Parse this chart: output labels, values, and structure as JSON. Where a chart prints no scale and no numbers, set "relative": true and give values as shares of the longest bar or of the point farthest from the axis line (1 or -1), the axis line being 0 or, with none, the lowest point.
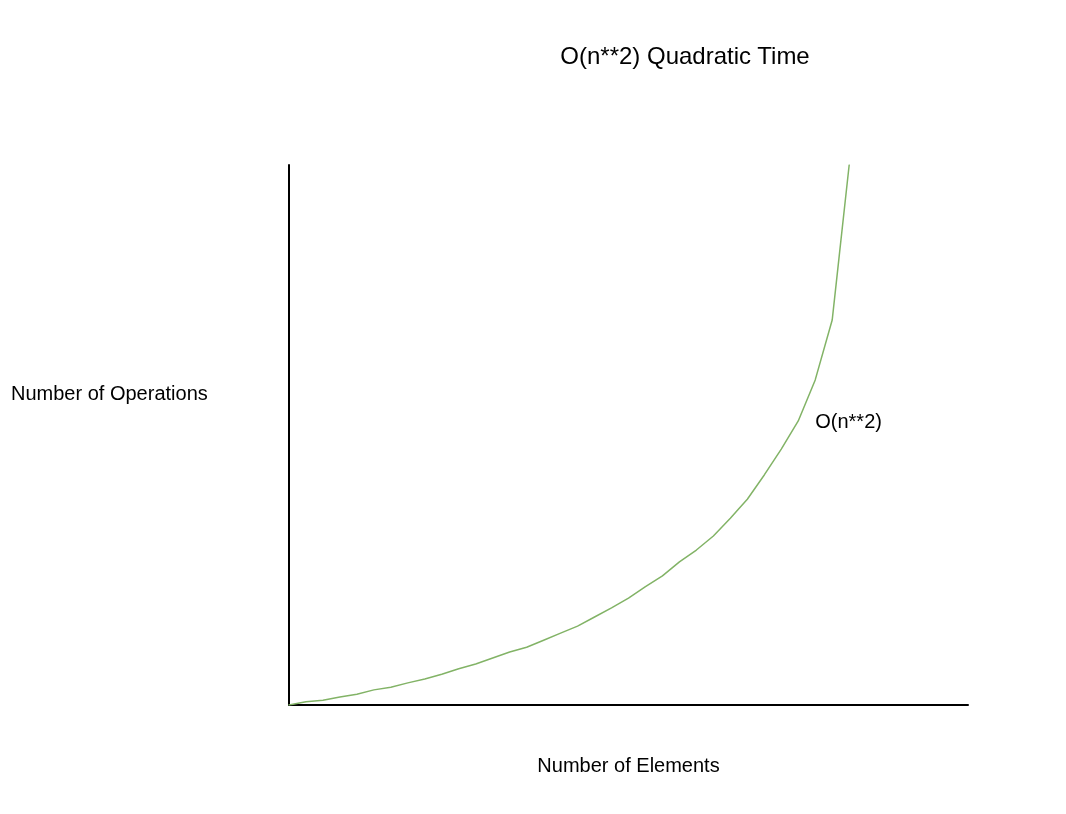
{
  "chart_data": {
    "type": "line",
    "title": "O(n**2) Quadratic Time",
    "xlabel": "Number of Elements",
    "ylabel": "Number of Operations",
    "relative": true,
    "marker": "none",
    "line_style": "solid",
    "categories": [
      null,
      null,
      null,
      null,
      null,
      null,
      null,
      null,
      null,
      null,
      null,
      null,
      null,
      null,
      null,
      null,
      null,
      null,
      null,
      null,
      null,
      null,
      null,
      null,
      null,
      null,
      null,
      null,
      null,
      null,
      null,
      null,
      null,
      null,
      null,
      null,
      null,
      null,
      null,
      null,
      null
    ],
    "series": [
      {
        "name": "O(n**2)",
        "color": "#82b366",
        "values": [
          0,
          0.006,
          0.009,
          0.015,
          0.02,
          0.028,
          0.033,
          0.041,
          0.048,
          0.057,
          0.067,
          0.076,
          0.087,
          0.098,
          0.107,
          0.12,
          0.133,
          0.146,
          0.163,
          0.18,
          0.198,
          0.219,
          0.239,
          0.265,
          0.287,
          0.313,
          0.346,
          0.381,
          0.426,
          0.474,
          0.526,
          0.602,
          0.713,
          1,
          null,
          null,
          null,
          null,
          null,
          null,
          null
        ]
      }
    ]
  }
}
